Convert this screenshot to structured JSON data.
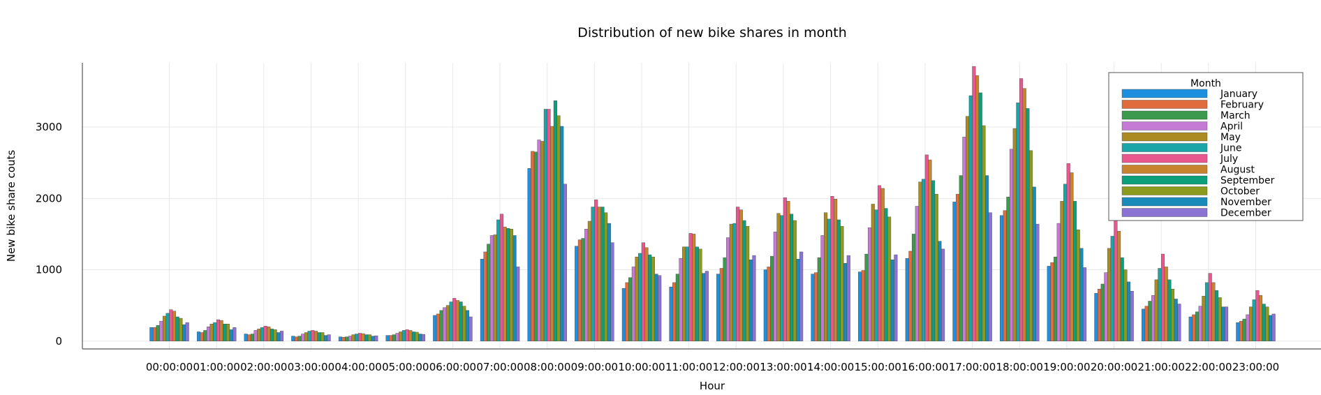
{
  "chart_data": {
    "type": "bar",
    "title": "Distribution of new bike shares in month",
    "xlabel": "Hour",
    "ylabel": "New bike share couts",
    "ylim": [
      -110,
      3900
    ],
    "yticks": [
      0,
      1000,
      2000,
      3000
    ],
    "grid": true,
    "legend": {
      "title": "Month",
      "position": "top-right"
    },
    "categories": [
      "00:00:00",
      "01:00:00",
      "02:00:00",
      "03:00:00",
      "04:00:00",
      "05:00:00",
      "06:00:00",
      "07:00:00",
      "08:00:00",
      "09:00:00",
      "10:00:00",
      "11:00:00",
      "12:00:00",
      "13:00:00",
      "14:00:00",
      "15:00:00",
      "16:00:00",
      "17:00:00",
      "18:00:00",
      "19:00:00",
      "20:00:00",
      "21:00:00",
      "22:00:00",
      "23:00:00"
    ],
    "series": [
      {
        "name": "January",
        "color": "#1f8fe0",
        "values": [
          190,
          130,
          100,
          70,
          60,
          80,
          360,
          1150,
          2420,
          1330,
          740,
          760,
          940,
          1000,
          940,
          970,
          1160,
          1950,
          1760,
          1050,
          670,
          450,
          340,
          260
        ]
      },
      {
        "name": "February",
        "color": "#e06b3c",
        "values": [
          190,
          120,
          90,
          60,
          55,
          80,
          380,
          1250,
          2660,
          1420,
          820,
          820,
          1020,
          1040,
          960,
          990,
          1260,
          2060,
          1830,
          1100,
          730,
          490,
          370,
          280
        ]
      },
      {
        "name": "March",
        "color": "#3c9a4c",
        "values": [
          220,
          150,
          100,
          70,
          60,
          90,
          430,
          1360,
          2650,
          1440,
          890,
          940,
          1170,
          1190,
          1170,
          1220,
          1500,
          2320,
          2020,
          1180,
          800,
          560,
          410,
          310
        ]
      },
      {
        "name": "April",
        "color": "#c57ad6",
        "values": [
          280,
          200,
          150,
          100,
          70,
          110,
          470,
          1480,
          2820,
          1570,
          1040,
          1160,
          1450,
          1530,
          1480,
          1590,
          1890,
          2860,
          2690,
          1650,
          960,
          640,
          490,
          370
        ]
      },
      {
        "name": "May",
        "color": "#ab8a24",
        "values": [
          350,
          240,
          170,
          120,
          90,
          130,
          500,
          1490,
          2800,
          1680,
          1180,
          1320,
          1640,
          1790,
          1800,
          1920,
          2230,
          3150,
          2980,
          1960,
          1300,
          860,
          630,
          480
        ]
      },
      {
        "name": "June",
        "color": "#1aa5a8",
        "values": [
          390,
          260,
          190,
          140,
          100,
          150,
          550,
          1700,
          3250,
          1880,
          1230,
          1320,
          1650,
          1760,
          1710,
          1840,
          2270,
          3440,
          3340,
          2200,
          1470,
          1020,
          820,
          580
        ]
      },
      {
        "name": "July",
        "color": "#e8588f",
        "values": [
          440,
          300,
          210,
          150,
          110,
          160,
          600,
          1780,
          3250,
          1980,
          1380,
          1510,
          1880,
          2010,
          2030,
          2180,
          2610,
          3850,
          3680,
          2490,
          1700,
          1220,
          950,
          710
        ]
      },
      {
        "name": "August",
        "color": "#c8832f",
        "values": [
          420,
          290,
          200,
          140,
          105,
          150,
          570,
          1600,
          3010,
          1880,
          1310,
          1500,
          1840,
          1960,
          1990,
          2140,
          2540,
          3720,
          3540,
          2360,
          1540,
          1040,
          820,
          640
        ]
      },
      {
        "name": "September",
        "color": "#0d9e7c",
        "values": [
          340,
          240,
          170,
          120,
          90,
          130,
          550,
          1580,
          3370,
          1880,
          1210,
          1320,
          1690,
          1780,
          1700,
          1860,
          2250,
          3480,
          3260,
          1960,
          1170,
          860,
          710,
          520
        ]
      },
      {
        "name": "October",
        "color": "#8c9a1e",
        "values": [
          320,
          240,
          160,
          120,
          90,
          125,
          490,
          1570,
          3160,
          1800,
          1180,
          1290,
          1610,
          1690,
          1610,
          1740,
          2060,
          3020,
          2670,
          1560,
          1000,
          730,
          610,
          480
        ]
      },
      {
        "name": "November",
        "color": "#1a8ab8",
        "values": [
          230,
          160,
          120,
          80,
          70,
          100,
          430,
          1480,
          3010,
          1650,
          940,
          950,
          1140,
          1150,
          1090,
          1140,
          1400,
          2320,
          2160,
          1300,
          830,
          590,
          480,
          360
        ]
      },
      {
        "name": "December",
        "color": "#8b73d6",
        "values": [
          260,
          190,
          140,
          90,
          75,
          95,
          340,
          1040,
          2200,
          1380,
          920,
          980,
          1200,
          1250,
          1200,
          1210,
          1290,
          1800,
          1640,
          1030,
          700,
          520,
          480,
          380
        ]
      }
    ]
  }
}
